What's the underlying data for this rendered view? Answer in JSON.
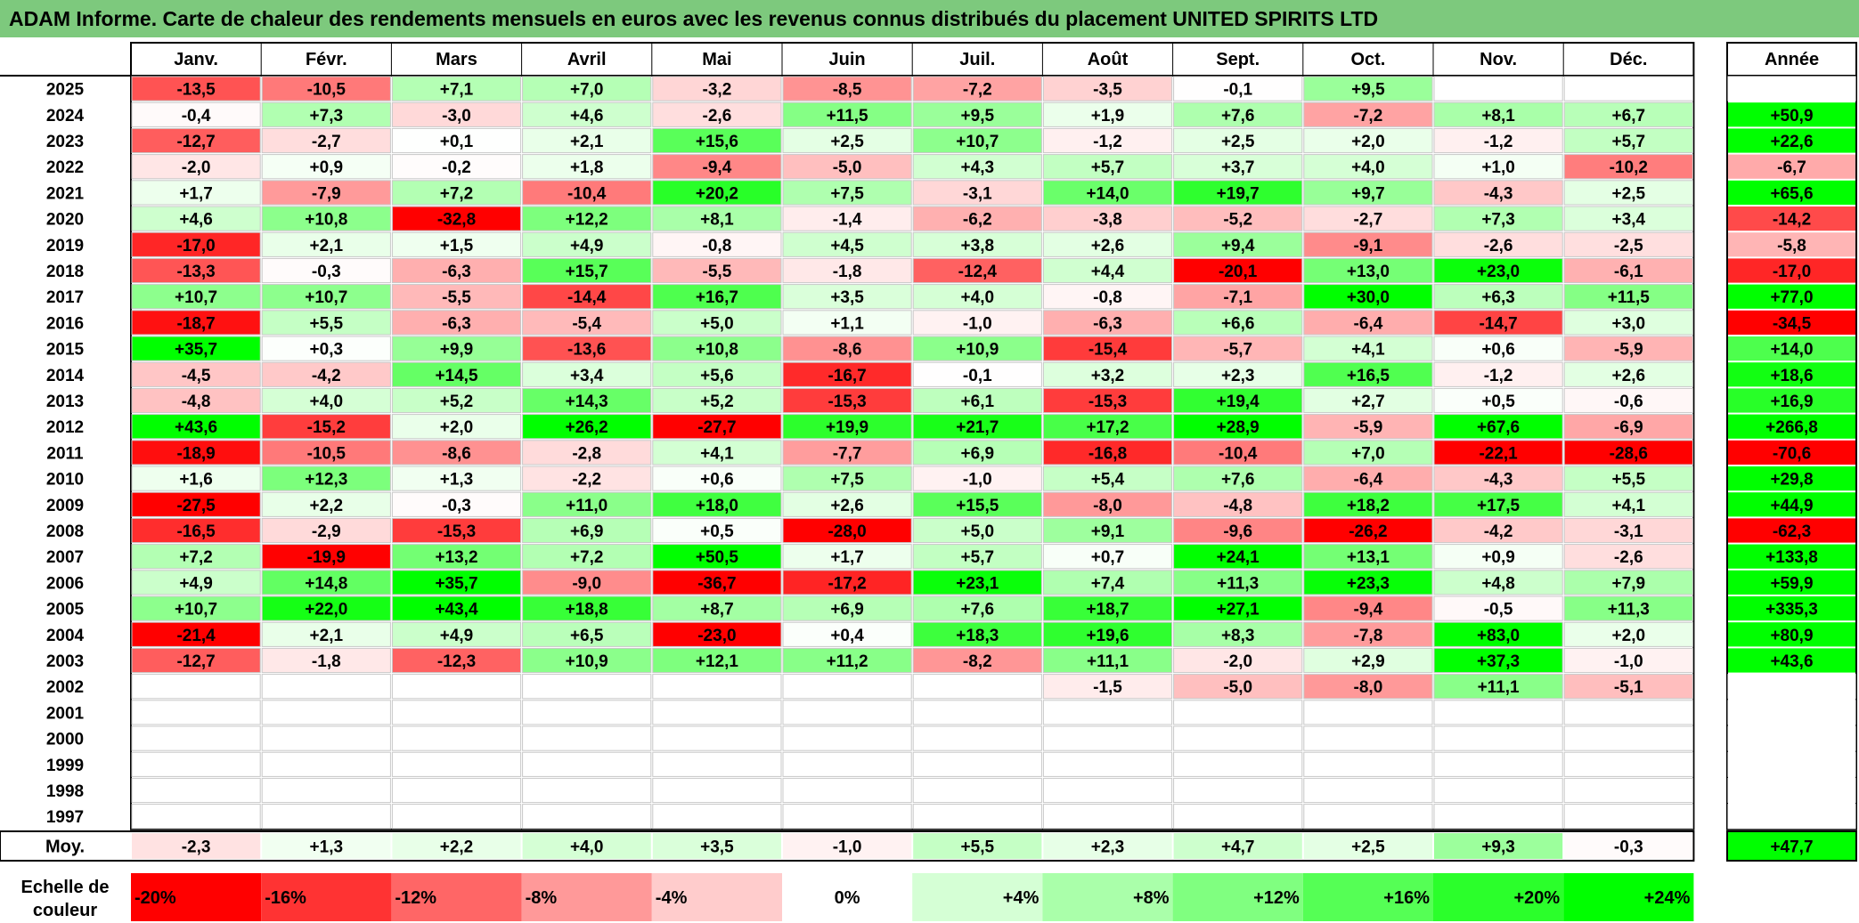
{
  "title": "ADAM Informe. Carte de chaleur des rendements mensuels en euros avec les revenus connus distribués du placement UNITED SPIRITS LTD",
  "colors": {
    "title_bg": "#7dc97d",
    "strong_red": "#ff0000",
    "strong_green": "#00ff00",
    "neutral": "#ffffff"
  },
  "chart_data": {
    "type": "heatmap",
    "months": [
      "Janv.",
      "Févr.",
      "Mars",
      "Avril",
      "Mai",
      "Juin",
      "Juil.",
      "Août",
      "Sept.",
      "Oct.",
      "Nov.",
      "Déc."
    ],
    "year_header": "Année",
    "rows": [
      {
        "year": "2025",
        "values": [
          "-13,5",
          "-10,5",
          "+7,1",
          "+7,0",
          "-3,2",
          "-8,5",
          "-7,2",
          "-3,5",
          "-0,1",
          "+9,5",
          "",
          ""
        ],
        "annual": ""
      },
      {
        "year": "2024",
        "values": [
          "-0,4",
          "+7,3",
          "-3,0",
          "+4,6",
          "-2,6",
          "+11,5",
          "+9,5",
          "+1,9",
          "+7,6",
          "-7,2",
          "+8,1",
          "+6,7"
        ],
        "annual": "+50,9"
      },
      {
        "year": "2023",
        "values": [
          "-12,7",
          "-2,7",
          "+0,1",
          "+2,1",
          "+15,6",
          "+2,5",
          "+10,7",
          "-1,2",
          "+2,5",
          "+2,0",
          "-1,2",
          "+5,7"
        ],
        "annual": "+22,6"
      },
      {
        "year": "2022",
        "values": [
          "-2,0",
          "+0,9",
          "-0,2",
          "+1,8",
          "-9,4",
          "-5,0",
          "+4,3",
          "+5,7",
          "+3,7",
          "+4,0",
          "+1,0",
          "-10,2"
        ],
        "annual": "-6,7"
      },
      {
        "year": "2021",
        "values": [
          "+1,7",
          "-7,9",
          "+7,2",
          "-10,4",
          "+20,2",
          "+7,5",
          "-3,1",
          "+14,0",
          "+19,7",
          "+9,7",
          "-4,3",
          "+2,5"
        ],
        "annual": "+65,6"
      },
      {
        "year": "2020",
        "values": [
          "+4,6",
          "+10,8",
          "-32,8",
          "+12,2",
          "+8,1",
          "-1,4",
          "-6,2",
          "-3,8",
          "-5,2",
          "-2,7",
          "+7,3",
          "+3,4"
        ],
        "annual": "-14,2"
      },
      {
        "year": "2019",
        "values": [
          "-17,0",
          "+2,1",
          "+1,5",
          "+4,9",
          "-0,8",
          "+4,5",
          "+3,8",
          "+2,6",
          "+9,4",
          "-9,1",
          "-2,6",
          "-2,5"
        ],
        "annual": "-5,8"
      },
      {
        "year": "2018",
        "values": [
          "-13,3",
          "-0,3",
          "-6,3",
          "+15,7",
          "-5,5",
          "-1,8",
          "-12,4",
          "+4,4",
          "-20,1",
          "+13,0",
          "+23,0",
          "-6,1"
        ],
        "annual": "-17,0"
      },
      {
        "year": "2017",
        "values": [
          "+10,7",
          "+10,7",
          "-5,5",
          "-14,4",
          "+16,7",
          "+3,5",
          "+4,0",
          "-0,8",
          "-7,1",
          "+30,0",
          "+6,3",
          "+11,5"
        ],
        "annual": "+77,0"
      },
      {
        "year": "2016",
        "values": [
          "-18,7",
          "+5,5",
          "-6,3",
          "-5,4",
          "+5,0",
          "+1,1",
          "-1,0",
          "-6,3",
          "+6,6",
          "-6,4",
          "-14,7",
          "+3,0"
        ],
        "annual": "-34,5"
      },
      {
        "year": "2015",
        "values": [
          "+35,7",
          "+0,3",
          "+9,9",
          "-13,6",
          "+10,8",
          "-8,6",
          "+10,9",
          "-15,4",
          "-5,7",
          "+4,1",
          "+0,6",
          "-5,9"
        ],
        "annual": "+14,0"
      },
      {
        "year": "2014",
        "values": [
          "-4,5",
          "-4,2",
          "+14,5",
          "+3,4",
          "+5,6",
          "-16,7",
          "-0,1",
          "+3,2",
          "+2,3",
          "+16,5",
          "-1,2",
          "+2,6"
        ],
        "annual": "+18,6"
      },
      {
        "year": "2013",
        "values": [
          "-4,8",
          "+4,0",
          "+5,2",
          "+14,3",
          "+5,2",
          "-15,3",
          "+6,1",
          "-15,3",
          "+19,4",
          "+2,7",
          "+0,5",
          "-0,6"
        ],
        "annual": "+16,9"
      },
      {
        "year": "2012",
        "values": [
          "+43,6",
          "-15,2",
          "+2,0",
          "+26,2",
          "-27,7",
          "+19,9",
          "+21,7",
          "+17,2",
          "+28,9",
          "-5,9",
          "+67,6",
          "-6,9"
        ],
        "annual": "+266,8"
      },
      {
        "year": "2011",
        "values": [
          "-18,9",
          "-10,5",
          "-8,6",
          "-2,8",
          "+4,1",
          "-7,7",
          "+6,9",
          "-16,8",
          "-10,4",
          "+7,0",
          "-22,1",
          "-28,6"
        ],
        "annual": "-70,6"
      },
      {
        "year": "2010",
        "values": [
          "+1,6",
          "+12,3",
          "+1,3",
          "-2,2",
          "+0,6",
          "+7,5",
          "-1,0",
          "+5,4",
          "+7,6",
          "-6,4",
          "-4,3",
          "+5,5"
        ],
        "annual": "+29,8"
      },
      {
        "year": "2009",
        "values": [
          "-27,5",
          "+2,2",
          "-0,3",
          "+11,0",
          "+18,0",
          "+2,6",
          "+15,5",
          "-8,0",
          "-4,8",
          "+18,2",
          "+17,5",
          "+4,1"
        ],
        "annual": "+44,9"
      },
      {
        "year": "2008",
        "values": [
          "-16,5",
          "-2,9",
          "-15,3",
          "+6,9",
          "+0,5",
          "-28,0",
          "+5,0",
          "+9,1",
          "-9,6",
          "-26,2",
          "-4,2",
          "-3,1"
        ],
        "annual": "-62,3"
      },
      {
        "year": "2007",
        "values": [
          "+7,2",
          "-19,9",
          "+13,2",
          "+7,2",
          "+50,5",
          "+1,7",
          "+5,7",
          "+0,7",
          "+24,1",
          "+13,1",
          "+0,9",
          "-2,6"
        ],
        "annual": "+133,8"
      },
      {
        "year": "2006",
        "values": [
          "+4,9",
          "+14,8",
          "+35,7",
          "-9,0",
          "-36,7",
          "-17,2",
          "+23,1",
          "+7,4",
          "+11,3",
          "+23,3",
          "+4,8",
          "+7,9"
        ],
        "annual": "+59,9"
      },
      {
        "year": "2005",
        "values": [
          "+10,7",
          "+22,0",
          "+43,4",
          "+18,8",
          "+8,7",
          "+6,9",
          "+7,6",
          "+18,7",
          "+27,1",
          "-9,4",
          "-0,5",
          "+11,3"
        ],
        "annual": "+335,3"
      },
      {
        "year": "2004",
        "values": [
          "-21,4",
          "+2,1",
          "+4,9",
          "+6,5",
          "-23,0",
          "+0,4",
          "+18,3",
          "+19,6",
          "+8,3",
          "-7,8",
          "+83,0",
          "+2,0"
        ],
        "annual": "+80,9"
      },
      {
        "year": "2003",
        "values": [
          "-12,7",
          "-1,8",
          "-12,3",
          "+10,9",
          "+12,1",
          "+11,2",
          "-8,2",
          "+11,1",
          "-2,0",
          "+2,9",
          "+37,3",
          "-1,0"
        ],
        "annual": "+43,6"
      },
      {
        "year": "2002",
        "values": [
          "",
          "",
          "",
          "",
          "",
          "",
          "",
          "-1,5",
          "-5,0",
          "-8,0",
          "+11,1",
          "-5,1"
        ],
        "annual": ""
      },
      {
        "year": "2001",
        "values": [
          "",
          "",
          "",
          "",
          "",
          "",
          "",
          "",
          "",
          "",
          "",
          ""
        ],
        "annual": ""
      },
      {
        "year": "2000",
        "values": [
          "",
          "",
          "",
          "",
          "",
          "",
          "",
          "",
          "",
          "",
          "",
          ""
        ],
        "annual": ""
      },
      {
        "year": "1999",
        "values": [
          "",
          "",
          "",
          "",
          "",
          "",
          "",
          "",
          "",
          "",
          "",
          ""
        ],
        "annual": ""
      },
      {
        "year": "1998",
        "values": [
          "",
          "",
          "",
          "",
          "",
          "",
          "",
          "",
          "",
          "",
          "",
          ""
        ],
        "annual": ""
      },
      {
        "year": "1997",
        "values": [
          "",
          "",
          "",
          "",
          "",
          "",
          "",
          "",
          "",
          "",
          "",
          ""
        ],
        "annual": ""
      }
    ],
    "average": {
      "label": "Moy.",
      "values": [
        "-2,3",
        "+1,3",
        "+2,2",
        "+4,0",
        "+3,5",
        "-1,0",
        "+5,5",
        "+2,3",
        "+4,7",
        "+2,5",
        "+9,3",
        "-0,3"
      ],
      "annual": "+47,7"
    },
    "scale": {
      "label_line1": "Echelle de",
      "label_line2": "couleur",
      "stops": [
        "-20%",
        "-16%",
        "-12%",
        "-8%",
        "-4%",
        "0%",
        "+4%",
        "+8%",
        "+12%",
        "+16%",
        "+20%",
        "+24%"
      ],
      "stop_values": [
        -20,
        -16,
        -12,
        -8,
        -4,
        0,
        4,
        8,
        12,
        16,
        20,
        24
      ]
    }
  }
}
